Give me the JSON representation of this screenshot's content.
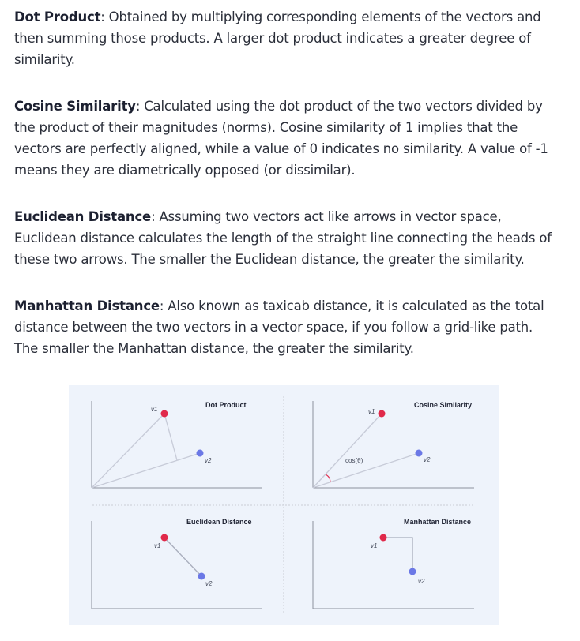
{
  "paragraphs": [
    {
      "term": "Dot Product",
      "text": ": Obtained by multiplying corresponding elements of the vectors and then summing those products. A larger dot product indicates a greater degree of similarity."
    },
    {
      "term": "Cosine Similarity",
      "text": ": Calculated using the dot product of the two vectors divided by the product of their magnitudes (norms). Cosine similarity of 1 implies that the vectors are perfectly aligned, while a value of 0 indicates no similarity. A value of -1 means they are diametrically opposed (or dissimilar)."
    },
    {
      "term": "Euclidean Distance",
      "text": ": Assuming two vectors act like arrows in vector space, Euclidean distance calculates the length of the straight line connecting the heads of these two arrows. The smaller the Euclidean distance, the greater the similarity."
    },
    {
      "term": "Manhattan Distance",
      "text": ": Also known as taxicab distance, it is calculated as the total distance between the two vectors in a vector space, if you follow a grid-like path. The smaller the Manhattan distance, the greater the similarity."
    }
  ],
  "figure": {
    "panels": [
      {
        "title": "Dot Product",
        "v1": "v1",
        "v2": "v2"
      },
      {
        "title": "Cosine Similarity",
        "v1": "v1",
        "v2": "v2",
        "angle_label": "cos(θ)"
      },
      {
        "title": "Euclidean Distance",
        "v1": "v1",
        "v2": "v2"
      },
      {
        "title": "Manhattan Distance",
        "v1": "v1",
        "v2": "v2"
      }
    ],
    "colors": {
      "v1": "#e0294a",
      "v2": "#6b78e6",
      "line": "#c7cbd8",
      "axis": "#8c909c",
      "background": "#eef3fb"
    }
  }
}
